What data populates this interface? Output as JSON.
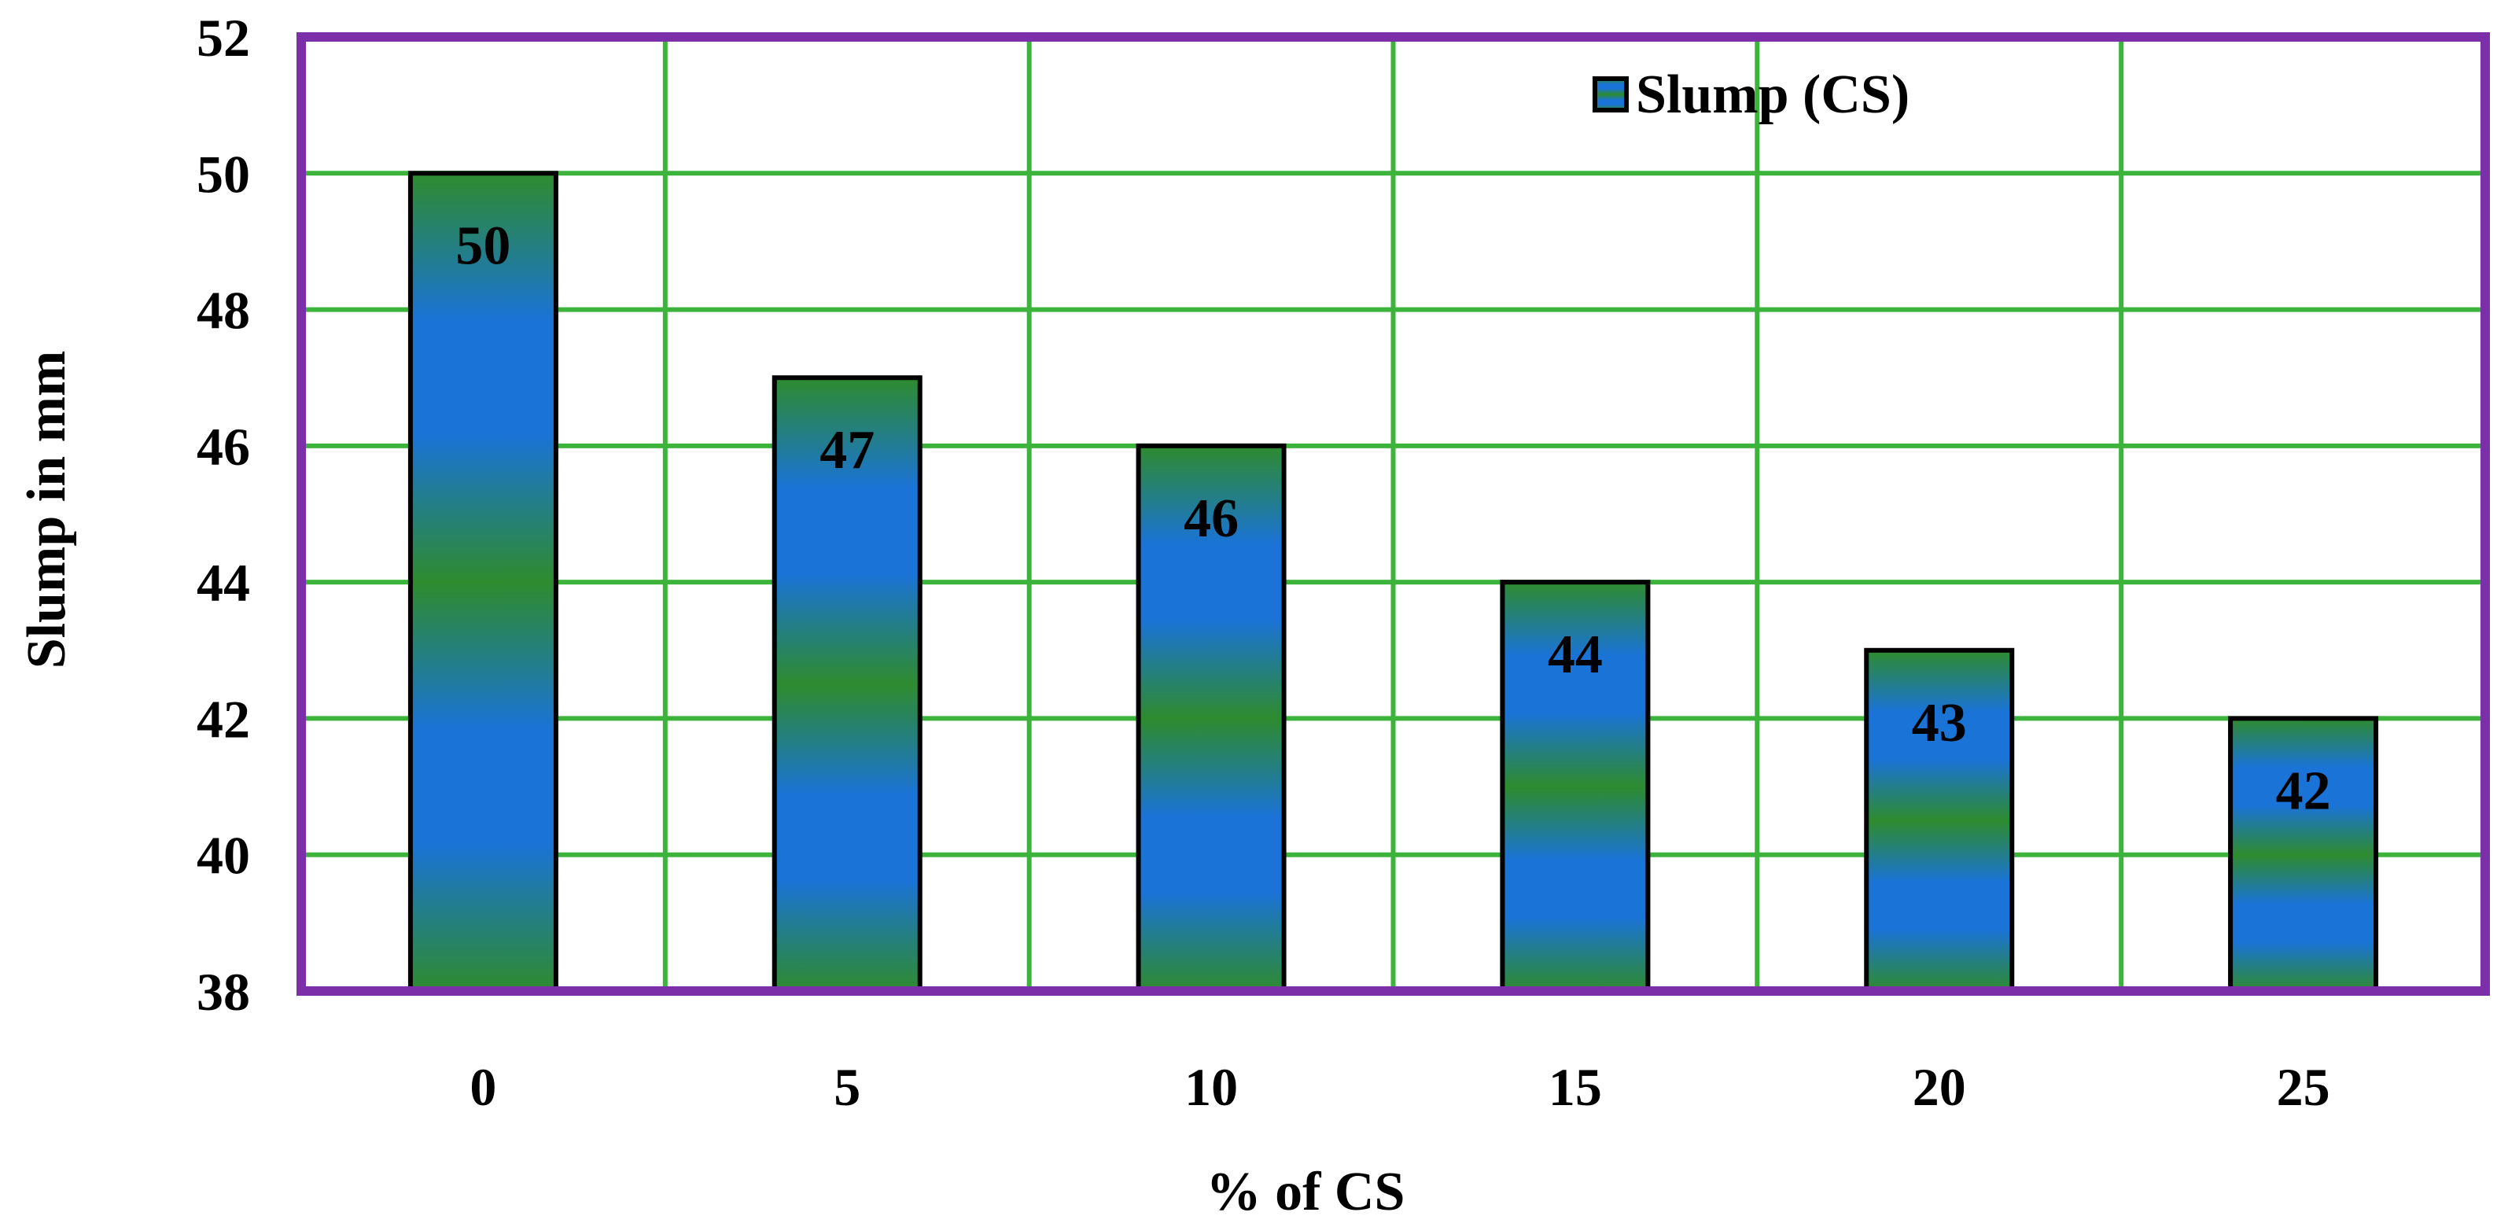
{
  "chart_data": {
    "type": "bar",
    "categories": [
      "0",
      "5",
      "10",
      "15",
      "20",
      "25"
    ],
    "series": [
      {
        "name": "Slump (CS)",
        "values": [
          50,
          47,
          46,
          44,
          43,
          42
        ]
      }
    ],
    "data_labels": [
      "50",
      "47",
      "46",
      "44",
      "43",
      "42"
    ],
    "title": "",
    "xlabel": "% of CS",
    "ylabel": "Slump in mm",
    "ylim": [
      38,
      52
    ],
    "yticks": [
      "38",
      "40",
      "42",
      "44",
      "46",
      "48",
      "50",
      "52"
    ],
    "grid": true,
    "legend_position": "top-right",
    "colors": {
      "bar_green": "#2e8b2e",
      "bar_blue": "#1a73d6",
      "gridline": "#3cb43c",
      "frame": "#7b2fa8",
      "bar_outline": "#000000"
    }
  }
}
